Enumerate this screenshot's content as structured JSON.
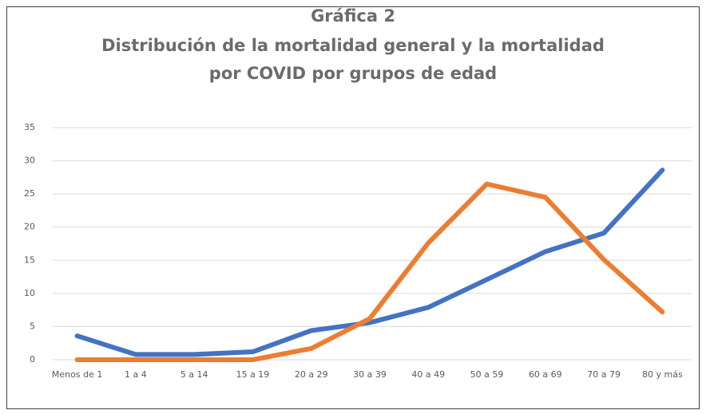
{
  "chart_data": {
    "type": "line",
    "title": [
      "Gráfica 2",
      "Distribución de la mortalidad general y la mortalidad",
      "por COVID por grupos de edad"
    ],
    "categories": [
      "Menos de 1",
      "1 a 4",
      "5 a 14",
      "15 a 19",
      "20 a 29",
      "30 a 39",
      "40 a 49",
      "50 a 59",
      "60 a 69",
      "70 a 79",
      "80 y más"
    ],
    "series": [
      {
        "color": "#4472c4",
        "values": [
          3.6,
          0.8,
          0.8,
          1.2,
          4.4,
          5.6,
          7.9,
          12.1,
          16.3,
          19.1,
          28.6
        ]
      },
      {
        "color": "#ed7d31",
        "values": [
          0,
          0,
          0,
          0,
          1.7,
          6.2,
          17.6,
          26.5,
          24.5,
          15.1,
          7.2
        ]
      }
    ],
    "ylim": [
      0,
      35
    ],
    "yticks": [
      0,
      5,
      10,
      15,
      20,
      25,
      30,
      35
    ],
    "grid": true
  }
}
